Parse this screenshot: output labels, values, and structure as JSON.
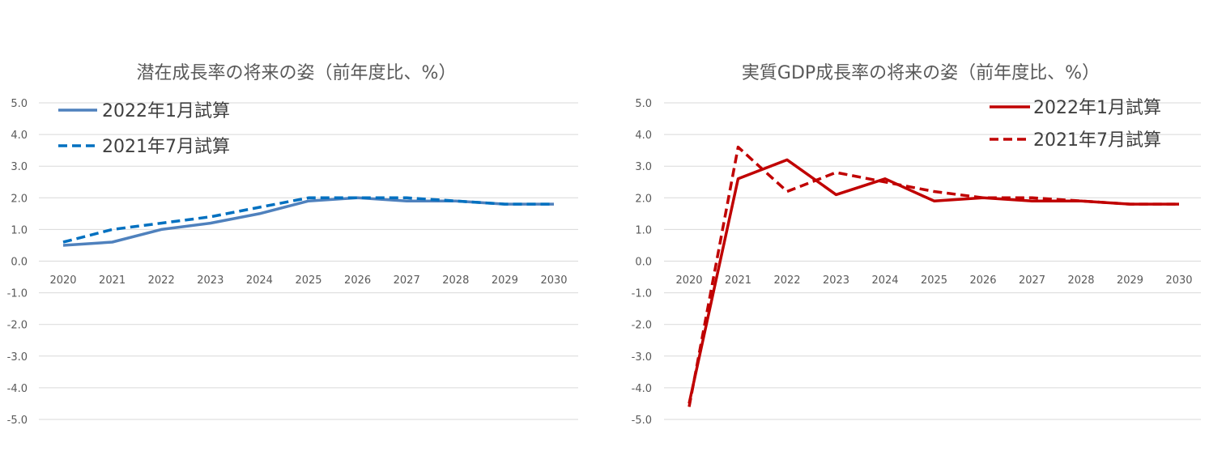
{
  "chart_data": [
    {
      "type": "line",
      "title": "潜在成長率の将来の姿（前年度比、%）",
      "categories": [
        "2020",
        "2021",
        "2022",
        "2023",
        "2024",
        "2025",
        "2026",
        "2027",
        "2028",
        "2029",
        "2030"
      ],
      "y_ticks": [
        "5.0",
        "4.0",
        "3.0",
        "2.0",
        "1.0",
        "0.0",
        "-1.0",
        "-2.0",
        "-3.0",
        "-4.0",
        "-5.0"
      ],
      "ylim": [
        -5,
        5
      ],
      "grid": true,
      "legend_position": "top-left",
      "series": [
        {
          "name": "2022年1月試算",
          "color": "#4f81bd",
          "dash": "solid",
          "values": [
            0.5,
            0.6,
            1.0,
            1.2,
            1.5,
            1.9,
            2.0,
            1.9,
            1.9,
            1.8,
            1.8
          ]
        },
        {
          "name": "2021年7月試算",
          "color": "#0070c0",
          "dash": "dashed",
          "values": [
            0.6,
            1.0,
            1.2,
            1.4,
            1.7,
            2.0,
            2.0,
            2.0,
            1.9,
            1.8,
            1.8
          ]
        }
      ]
    },
    {
      "type": "line",
      "title": "実質GDP成長率の将来の姿（前年度比、%）",
      "categories": [
        "2020",
        "2021",
        "2022",
        "2023",
        "2024",
        "2025",
        "2026",
        "2027",
        "2028",
        "2029",
        "2030"
      ],
      "y_ticks": [
        "5.0",
        "4.0",
        "3.0",
        "2.0",
        "1.0",
        "0.0",
        "-1.0",
        "-2.0",
        "-3.0",
        "-4.0",
        "-5.0"
      ],
      "ylim": [
        -5,
        5
      ],
      "grid": true,
      "legend_position": "top-right",
      "series": [
        {
          "name": "2022年1月試算",
          "color": "#c00000",
          "dash": "solid",
          "values": [
            -4.5,
            2.6,
            3.2,
            2.1,
            2.6,
            1.9,
            2.0,
            1.9,
            1.9,
            1.8,
            1.8
          ]
        },
        {
          "name": "2021年7月試算",
          "color": "#c00000",
          "dash": "dashed",
          "values": [
            -4.6,
            3.6,
            2.2,
            2.8,
            2.5,
            2.2,
            2.0,
            2.0,
            1.9,
            1.8,
            1.8
          ]
        }
      ]
    }
  ]
}
